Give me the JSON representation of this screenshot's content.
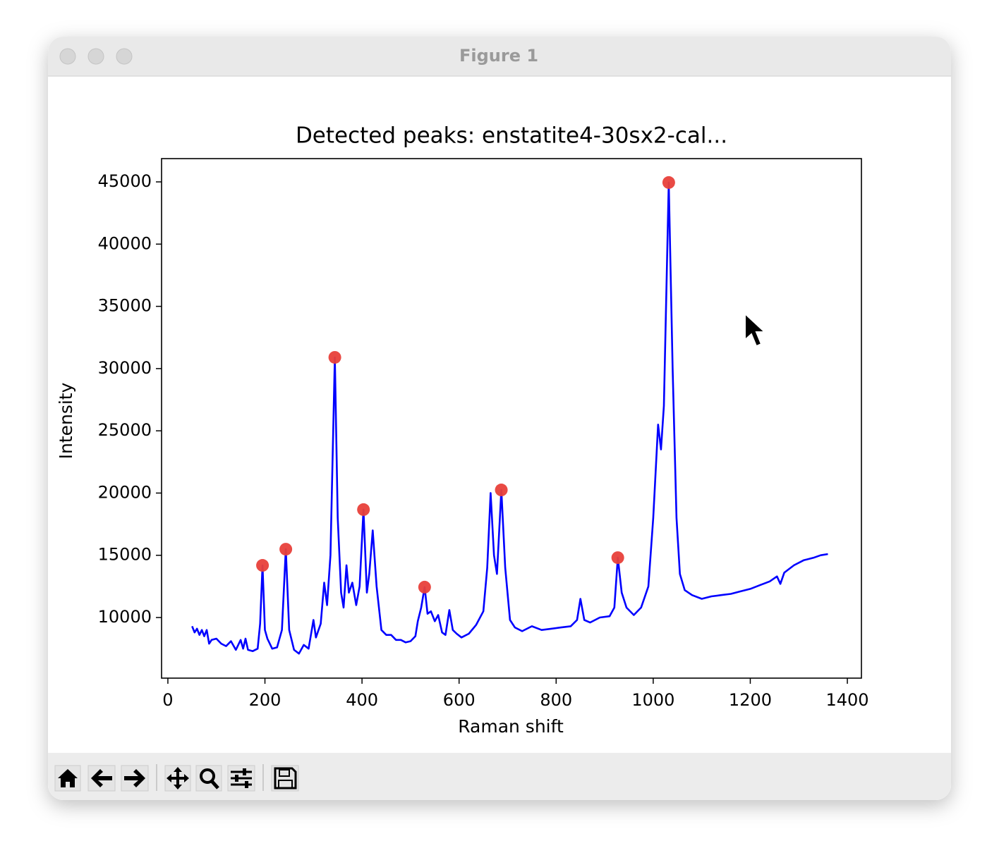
{
  "window": {
    "title": "Figure 1"
  },
  "chart_data": {
    "type": "line",
    "title": "Detected peaks: enstatite4-30sx2-cal...",
    "xlabel": "Raman shift",
    "ylabel": "Intensity",
    "xlim": [
      -13,
      1429
    ],
    "ylim": [
      5130,
      46870
    ],
    "xticks": [
      0,
      200,
      400,
      600,
      800,
      1000,
      1200,
      1400
    ],
    "yticks": [
      10000,
      15000,
      20000,
      25000,
      30000,
      35000,
      40000,
      45000
    ],
    "grid": false,
    "series": [
      {
        "type": "line",
        "color": "#0000ff",
        "x": [
          50,
          55,
          60,
          65,
          70,
          75,
          80,
          85,
          90,
          100,
          110,
          120,
          130,
          140,
          150,
          155,
          160,
          165,
          175,
          185,
          190,
          195,
          200,
          205,
          215,
          225,
          235,
          243,
          250,
          260,
          270,
          280,
          290,
          300,
          305,
          315,
          322,
          328,
          335,
          344,
          350,
          357,
          362,
          368,
          373,
          380,
          388,
          395,
          403,
          410,
          415,
          422,
          430,
          440,
          450,
          460,
          470,
          480,
          490,
          500,
          510,
          515,
          522,
          529,
          535,
          542,
          550,
          557,
          565,
          572,
          580,
          587,
          595,
          605,
          620,
          635,
          650,
          658,
          665,
          672,
          678,
          687,
          695,
          705,
          715,
          730,
          750,
          770,
          790,
          810,
          830,
          843,
          850,
          858,
          870,
          890,
          910,
          920,
          927,
          935,
          945,
          960,
          975,
          990,
          1000,
          1010,
          1016,
          1022,
          1032,
          1040,
          1048,
          1055,
          1065,
          1080,
          1100,
          1120,
          1140,
          1160,
          1180,
          1200,
          1220,
          1240,
          1255,
          1262,
          1270,
          1290,
          1310,
          1330,
          1345,
          1360
        ],
        "values": [
          9300,
          8800,
          9100,
          8600,
          9000,
          8500,
          9000,
          7900,
          8200,
          8300,
          7900,
          7700,
          8100,
          7400,
          8200,
          7500,
          8300,
          7400,
          7300,
          7500,
          9500,
          14190,
          9000,
          8300,
          7500,
          7600,
          9000,
          15490,
          9000,
          7400,
          7100,
          7800,
          7500,
          9800,
          8400,
          9500,
          12800,
          11000,
          15000,
          30900,
          18000,
          12000,
          10800,
          14200,
          12000,
          12800,
          11000,
          12500,
          18670,
          12000,
          13500,
          17000,
          12500,
          9000,
          8600,
          8600,
          8200,
          8200,
          8000,
          8100,
          8500,
          9700,
          10800,
          12440,
          10300,
          10500,
          9700,
          10200,
          8800,
          8600,
          10600,
          9000,
          8700,
          8400,
          8700,
          9400,
          10500,
          14000,
          20000,
          15000,
          13500,
          20250,
          14000,
          9800,
          9200,
          8900,
          9300,
          9000,
          9100,
          9200,
          9300,
          9800,
          11500,
          9800,
          9600,
          10000,
          10100,
          10800,
          14810,
          12000,
          10800,
          10200,
          10800,
          12500,
          18000,
          25500,
          23500,
          27000,
          44950,
          30000,
          18000,
          13500,
          12200,
          11800,
          11500,
          11700,
          11800,
          11900,
          12100,
          12300,
          12600,
          12900,
          13300,
          12700,
          13600,
          14200,
          14600,
          14800,
          15000,
          15100
        ]
      },
      {
        "type": "scatter",
        "color": "#e8403a",
        "x": [
          195,
          243,
          344,
          403,
          529,
          687,
          927,
          1032
        ],
        "values": [
          14190,
          15490,
          30900,
          18670,
          12440,
          20250,
          14810,
          44950
        ]
      }
    ]
  }
}
